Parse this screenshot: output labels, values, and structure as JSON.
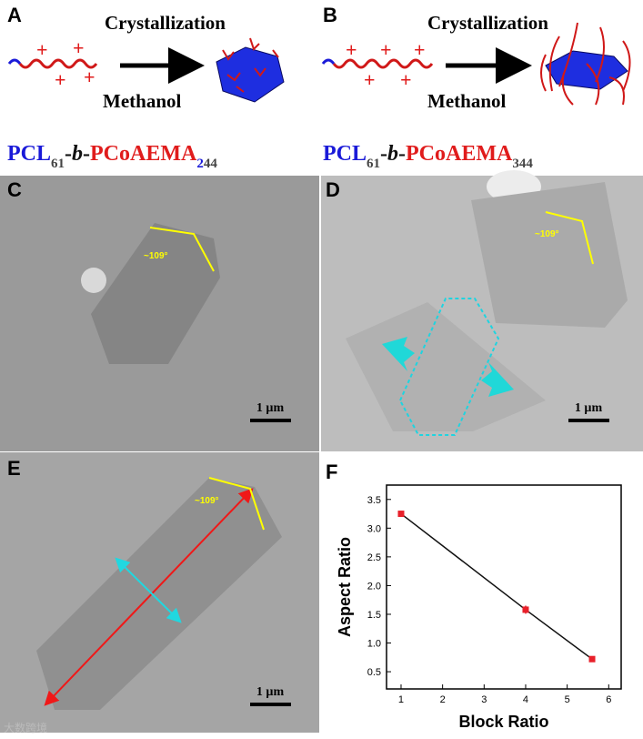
{
  "scheme": [
    {
      "label": "A",
      "above_arrow": "Crystallization",
      "below_arrow": "Methanol",
      "polymer": [
        {
          "text": "PCL",
          "color": "#1a1ad8"
        },
        {
          "text": "61",
          "color": "#444444",
          "style": "sub"
        },
        {
          "text": "-",
          "color": "#111111"
        },
        {
          "text": "b",
          "color": "#111111",
          "style": "italic"
        },
        {
          "text": "-",
          "color": "#111111"
        },
        {
          "text": "PCoAEMA",
          "color": "#e01c1c"
        },
        {
          "text": "2",
          "color": "#1a1ad8",
          "style": "sub"
        },
        {
          "text": "44",
          "color": "#444444",
          "style": "sub"
        }
      ]
    },
    {
      "label": "B",
      "above_arrow": "Crystallization",
      "below_arrow": "Methanol",
      "polymer": [
        {
          "text": "PCL",
          "color": "#1a1ad8"
        },
        {
          "text": "61",
          "color": "#444444",
          "style": "sub"
        },
        {
          "text": "-",
          "color": "#111111"
        },
        {
          "text": "b",
          "color": "#111111",
          "style": "italic"
        },
        {
          "text": "-",
          "color": "#111111"
        },
        {
          "text": "PCoAEMA",
          "color": "#e01c1c"
        },
        {
          "text": "344",
          "color": "#444444",
          "style": "sub"
        }
      ]
    }
  ],
  "micrographs": [
    {
      "label": "C",
      "angle": "~109°",
      "scale": "1 µm"
    },
    {
      "label": "D",
      "angle": "~109°",
      "scale": "1 µm"
    },
    {
      "label": "E",
      "angle": "~109°",
      "scale": "1 µm"
    }
  ],
  "watermark": "大数跨境",
  "chart_data": {
    "type": "scatter",
    "label": "F",
    "x": [
      1,
      4,
      5.6
    ],
    "values": [
      3.25,
      1.58,
      0.72
    ],
    "errors": [
      0.05,
      0.07,
      0.03
    ],
    "color": "#e8202a",
    "line_color": "#111111",
    "xlim": [
      0.65,
      6.3
    ],
    "ylim": [
      0.2,
      3.75
    ],
    "xticks": [
      1,
      2,
      3,
      4,
      5,
      6
    ],
    "yticks": [
      0.5,
      {
        "value": 1,
        "label": "1.0"
      },
      1.5,
      {
        "value": 2,
        "label": "2.0"
      },
      2.5,
      {
        "value": 3,
        "label": "3.0"
      },
      3.5
    ],
    "xlabel": "Block Ratio",
    "ylabel": "Aspect Ratio"
  }
}
